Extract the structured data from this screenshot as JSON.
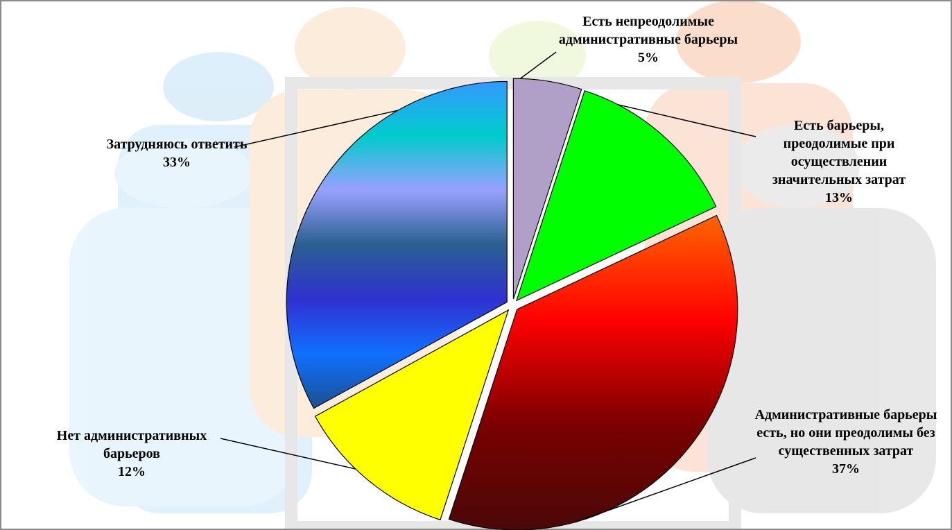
{
  "chart_data": {
    "type": "pie",
    "categories": [
      "Есть непреодолимые административные барьеры",
      "Есть барьеры, преодолимые при осуществлении значительных затрат",
      "Административные барьеры есть, но они преодолимы без существенных затрат",
      "Нет административных барьеров",
      "Затрудняюсь ответить"
    ],
    "values": [
      5,
      13,
      37,
      12,
      33
    ],
    "value_labels": [
      "5%",
      "13%",
      "37%",
      "12%",
      "33%"
    ],
    "colors": [
      "#b0a0c8",
      "#00ff00",
      [
        "#ff6600",
        "#ff0000",
        "#7a0000",
        "#4a0808"
      ],
      "#ffff00",
      [
        "#3399ff",
        "#00cccc",
        "#99a0ff",
        "#2a6090",
        "#3030d0",
        "#1070ff",
        "#1a5090"
      ]
    ]
  }
}
